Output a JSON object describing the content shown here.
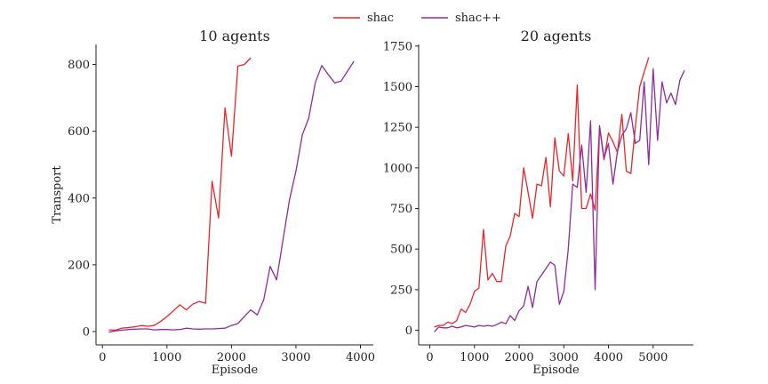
{
  "legend": [
    {
      "name": "shac",
      "color": "#e8262a"
    },
    {
      "name": "shac++",
      "color": "#8e2c9b"
    }
  ],
  "chart_data": [
    {
      "type": "line",
      "title": "10 agents",
      "xlabel": "Episode",
      "ylabel": "Transport",
      "xlim": [
        -100,
        4200
      ],
      "ylim": [
        -40,
        860
      ],
      "xticks": [
        0,
        1000,
        2000,
        3000,
        4000
      ],
      "yticks": [
        0,
        200,
        400,
        600,
        800
      ],
      "xtick_labels": [
        "0",
        "1000",
        "2000",
        "3000",
        "4000"
      ],
      "ytick_labels": [
        "0",
        "200",
        "400",
        "600",
        "800"
      ],
      "series": [
        {
          "name": "shac",
          "color": "#e8262a",
          "x": [
            100,
            200,
            300,
            400,
            500,
            600,
            700,
            800,
            900,
            1000,
            1100,
            1200,
            1300,
            1400,
            1500,
            1600,
            1700,
            1800,
            1900,
            2000,
            2100,
            2200,
            2300
          ],
          "y": [
            5,
            4,
            10,
            12,
            14,
            18,
            16,
            18,
            30,
            45,
            62,
            80,
            65,
            82,
            90,
            85,
            450,
            340,
            670,
            525,
            795,
            800,
            820
          ]
        },
        {
          "name": "shac++",
          "color": "#8e2c9b",
          "x": [
            100,
            200,
            300,
            400,
            500,
            600,
            700,
            800,
            900,
            1000,
            1100,
            1200,
            1300,
            1400,
            1500,
            1600,
            1700,
            1800,
            1900,
            2000,
            2100,
            2200,
            2300,
            2400,
            2500,
            2600,
            2700,
            2800,
            2900,
            3000,
            3100,
            3200,
            3300,
            3400,
            3500,
            3600,
            3700,
            3800,
            3900
          ],
          "y": [
            -2,
            2,
            4,
            6,
            7,
            8,
            8,
            5,
            6,
            6,
            5,
            6,
            10,
            8,
            7,
            8,
            8,
            9,
            10,
            18,
            24,
            45,
            65,
            50,
            95,
            195,
            155,
            275,
            395,
            480,
            590,
            640,
            745,
            797,
            770,
            745,
            750,
            780,
            810
          ]
        }
      ]
    },
    {
      "type": "line",
      "title": "20 agents",
      "xlabel": "Episode",
      "ylabel": "",
      "xlim": [
        -250,
        5900
      ],
      "ylim": [
        -90,
        1760
      ],
      "xticks": [
        0,
        1000,
        2000,
        3000,
        4000,
        5000
      ],
      "yticks": [
        0,
        250,
        500,
        750,
        1000,
        1250,
        1500,
        1750
      ],
      "xtick_labels": [
        "0",
        "1000",
        "2000",
        "3000",
        "4000",
        "5000"
      ],
      "ytick_labels": [
        "0",
        "250",
        "500",
        "750",
        "1000",
        "1250",
        "1500",
        "1750"
      ],
      "series": [
        {
          "name": "shac",
          "color": "#e8262a",
          "x": [
            100,
            200,
            300,
            400,
            500,
            600,
            700,
            800,
            900,
            1000,
            1100,
            1200,
            1300,
            1400,
            1500,
            1600,
            1700,
            1800,
            1900,
            2000,
            2100,
            2200,
            2300,
            2400,
            2500,
            2600,
            2700,
            2800,
            2900,
            3000,
            3100,
            3200,
            3300,
            3400,
            3500,
            3600,
            3700,
            3800,
            3900,
            4000,
            4100,
            4200,
            4300,
            4400,
            4500,
            4600,
            4700,
            4800,
            4900
          ],
          "y": [
            20,
            30,
            30,
            50,
            40,
            60,
            130,
            110,
            160,
            240,
            260,
            620,
            310,
            350,
            300,
            300,
            520,
            580,
            720,
            700,
            1000,
            850,
            690,
            900,
            890,
            1065,
            760,
            1185,
            980,
            950,
            1210,
            920,
            1510,
            750,
            750,
            840,
            740,
            1250,
            1050,
            1215,
            1160,
            1095,
            1330,
            980,
            965,
            1250,
            1500,
            1590,
            1680
          ]
        },
        {
          "name": "shac++",
          "color": "#8e2c9b",
          "x": [
            100,
            200,
            300,
            400,
            500,
            600,
            700,
            800,
            900,
            1000,
            1100,
            1200,
            1300,
            1400,
            1500,
            1600,
            1700,
            1800,
            1900,
            2000,
            2100,
            2200,
            2300,
            2400,
            2500,
            2600,
            2700,
            2800,
            2900,
            3000,
            3100,
            3200,
            3300,
            3400,
            3500,
            3600,
            3700,
            3800,
            3900,
            4000,
            4100,
            4200,
            4300,
            4400,
            4500,
            4600,
            4700,
            4800,
            4900,
            5000,
            5100,
            5200,
            5300,
            5400,
            5500,
            5600,
            5700
          ],
          "y": [
            -10,
            20,
            15,
            15,
            25,
            15,
            20,
            30,
            25,
            20,
            30,
            25,
            30,
            25,
            35,
            50,
            40,
            90,
            60,
            120,
            150,
            270,
            140,
            300,
            340,
            380,
            420,
            400,
            160,
            240,
            500,
            900,
            880,
            1140,
            850,
            1290,
            250,
            1260,
            1060,
            1150,
            900,
            1100,
            1200,
            1240,
            1340,
            1150,
            1170,
            1530,
            1020,
            1610,
            1170,
            1530,
            1400,
            1460,
            1390,
            1540,
            1600
          ]
        }
      ]
    }
  ]
}
